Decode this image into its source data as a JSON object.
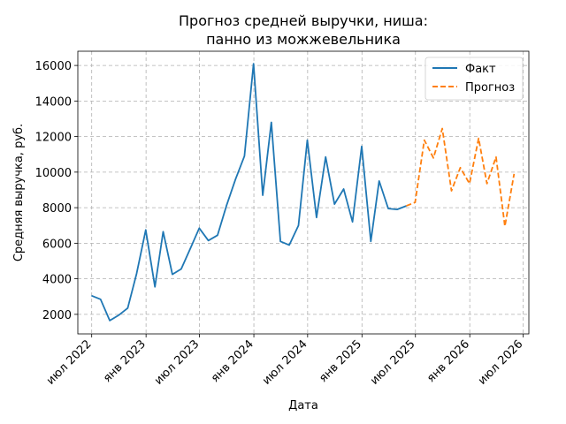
{
  "chart_data": {
    "type": "line",
    "title": [
      "Прогноз средней выручки, ниша:",
      "панно из можжевельника"
    ],
    "xlabel": "Дата",
    "ylabel": "Средняя выручка, руб.",
    "ylim": [
      900,
      16800
    ],
    "xlim": [
      "2022-05-15",
      "2026-07-20"
    ],
    "grid": true,
    "legend_position": "top-right",
    "x_ticks": [
      {
        "date": "2022-07-01",
        "label": "июл 2022"
      },
      {
        "date": "2023-01-01",
        "label": "янв 2023"
      },
      {
        "date": "2023-07-01",
        "label": "июл 2023"
      },
      {
        "date": "2024-01-01",
        "label": "янв 2024"
      },
      {
        "date": "2024-07-01",
        "label": "июл 2024"
      },
      {
        "date": "2025-01-01",
        "label": "янв 2025"
      },
      {
        "date": "2025-07-01",
        "label": "июл 2025"
      },
      {
        "date": "2026-01-01",
        "label": "янв 2026"
      },
      {
        "date": "2026-07-01",
        "label": "июл 2026"
      }
    ],
    "y_ticks": [
      2000,
      4000,
      6000,
      8000,
      10000,
      12000,
      14000,
      16000
    ],
    "series": [
      {
        "name": "Факт",
        "color": "#1f77b4",
        "style": "solid",
        "x": [
          "2022-06-30",
          "2022-07-31",
          "2022-08-31",
          "2022-09-30",
          "2022-10-31",
          "2022-11-30",
          "2022-12-31",
          "2023-01-31",
          "2023-02-28",
          "2023-03-31",
          "2023-04-30",
          "2023-05-31",
          "2023-06-30",
          "2023-07-31",
          "2023-08-31",
          "2023-09-30",
          "2023-10-31",
          "2023-11-30",
          "2023-12-31",
          "2024-01-31",
          "2024-02-29",
          "2024-03-31",
          "2024-04-30",
          "2024-05-31",
          "2024-06-30",
          "2024-07-31",
          "2024-08-31",
          "2024-09-30",
          "2024-10-31",
          "2024-11-30",
          "2024-12-31",
          "2025-01-31",
          "2025-02-28",
          "2025-03-31",
          "2025-04-30",
          "2025-05-31"
        ],
        "y": [
          3050,
          2850,
          1650,
          1950,
          2350,
          4300,
          6750,
          3550,
          6650,
          4250,
          4550,
          5700,
          6850,
          6150,
          6450,
          8100,
          9600,
          10900,
          16100,
          8700,
          12800,
          6100,
          5900,
          7000,
          11800,
          7450,
          10850,
          8200,
          9050,
          7200,
          11450,
          6100,
          9500,
          7950,
          7900,
          8100
        ]
      },
      {
        "name": "Прогноз",
        "color": "#ff7f0e",
        "style": "dashed",
        "x": [
          "2025-05-31",
          "2025-06-30",
          "2025-07-31",
          "2025-08-31",
          "2025-09-30",
          "2025-10-31",
          "2025-11-30",
          "2025-12-31",
          "2026-01-31",
          "2026-02-28",
          "2026-03-31",
          "2026-04-30",
          "2026-05-31"
        ],
        "y": [
          8100,
          8300,
          11800,
          10800,
          12450,
          8950,
          10250,
          9350,
          11900,
          9350,
          10850,
          6950,
          9900
        ]
      }
    ]
  }
}
